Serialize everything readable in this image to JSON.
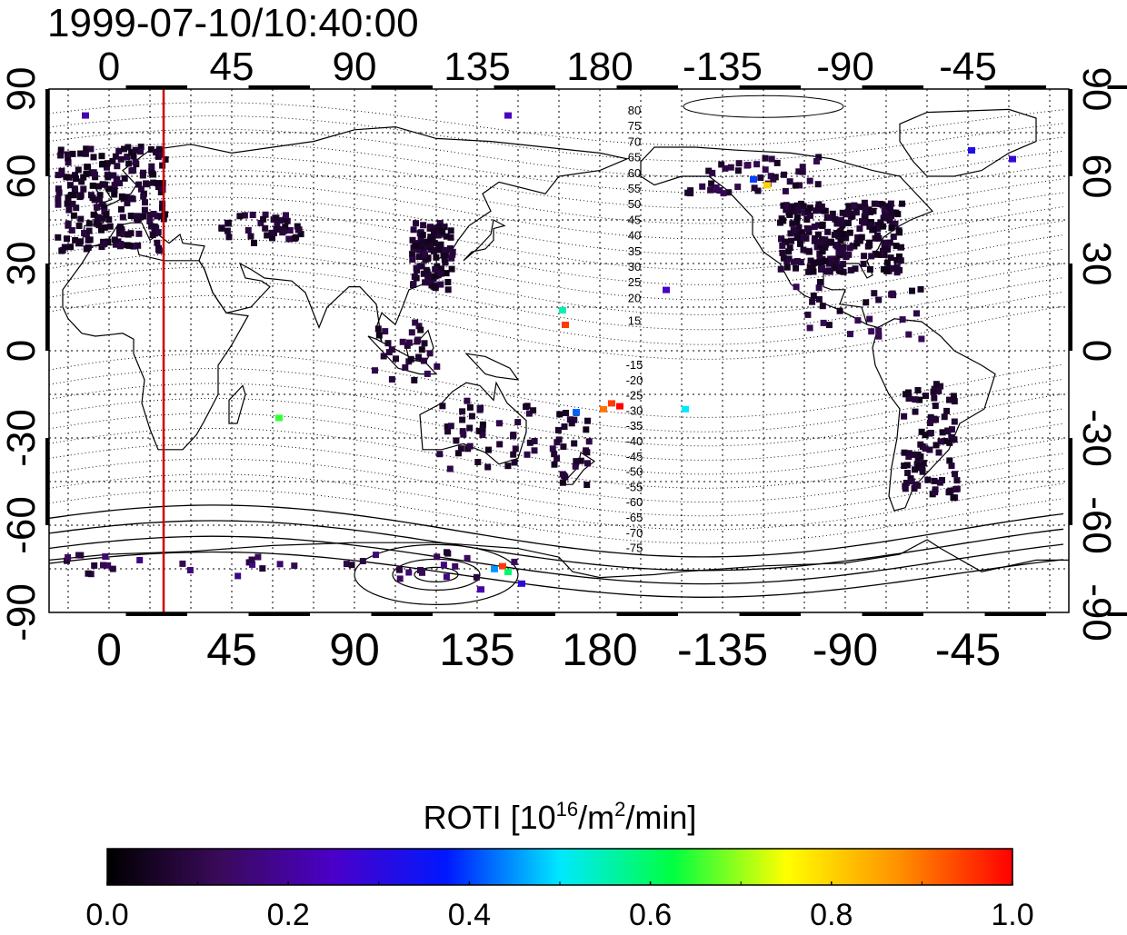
{
  "timestamp": "1999-07-10/10:40:00",
  "map": {
    "top_lon_labels": [
      "0",
      "45",
      "90",
      "135",
      "180",
      "-135",
      "-90",
      "-45"
    ],
    "bottom_lon_labels": [
      "0",
      "45",
      "90",
      "135",
      "180",
      "-135",
      "-90",
      "-45"
    ],
    "left_lat_labels": [
      "90",
      "60",
      "30",
      "0",
      "-30",
      "-60",
      "-90"
    ],
    "right_lat_labels": [
      "90",
      "60",
      "30",
      "0",
      "-30",
      "-60",
      "-90"
    ],
    "lon_ticks": [
      0,
      45,
      90,
      135,
      180,
      225,
      270,
      315
    ],
    "lat_ticks": [
      90,
      60,
      30,
      0,
      -30,
      -60,
      -90
    ],
    "lon_range": [
      -22,
      352
    ],
    "lat_range": [
      -90,
      90
    ],
    "terminator_longitude": 20,
    "terminator_color": "#cc0000",
    "magnetic_latitude_labels": {
      "north": [
        "80",
        "75",
        "70",
        "65",
        "60",
        "55",
        "50",
        "45",
        "40",
        "35",
        "30",
        "25",
        "20",
        "15"
      ],
      "south": [
        "-15",
        "-20",
        "-25",
        "-30",
        "-35",
        "-40",
        "-45",
        "-50",
        "-55",
        "-60",
        "-65",
        "-70",
        "-75"
      ]
    }
  },
  "colorbar": {
    "title_prefix": "ROTI  [10",
    "title_exp1": "16",
    "title_mid": "/m",
    "title_exp2": "2",
    "title_suffix": "/min]",
    "tick_labels": [
      "0.0",
      "0.2",
      "0.4",
      "0.6",
      "0.8",
      "1.0"
    ],
    "range": [
      0.0,
      1.0
    ],
    "colors": [
      "#000000",
      "#3a0a5a",
      "#4a00c8",
      "#0018ff",
      "#00e8ff",
      "#00ff40",
      "#ffff00",
      "#ff9000",
      "#ff0000"
    ]
  }
}
